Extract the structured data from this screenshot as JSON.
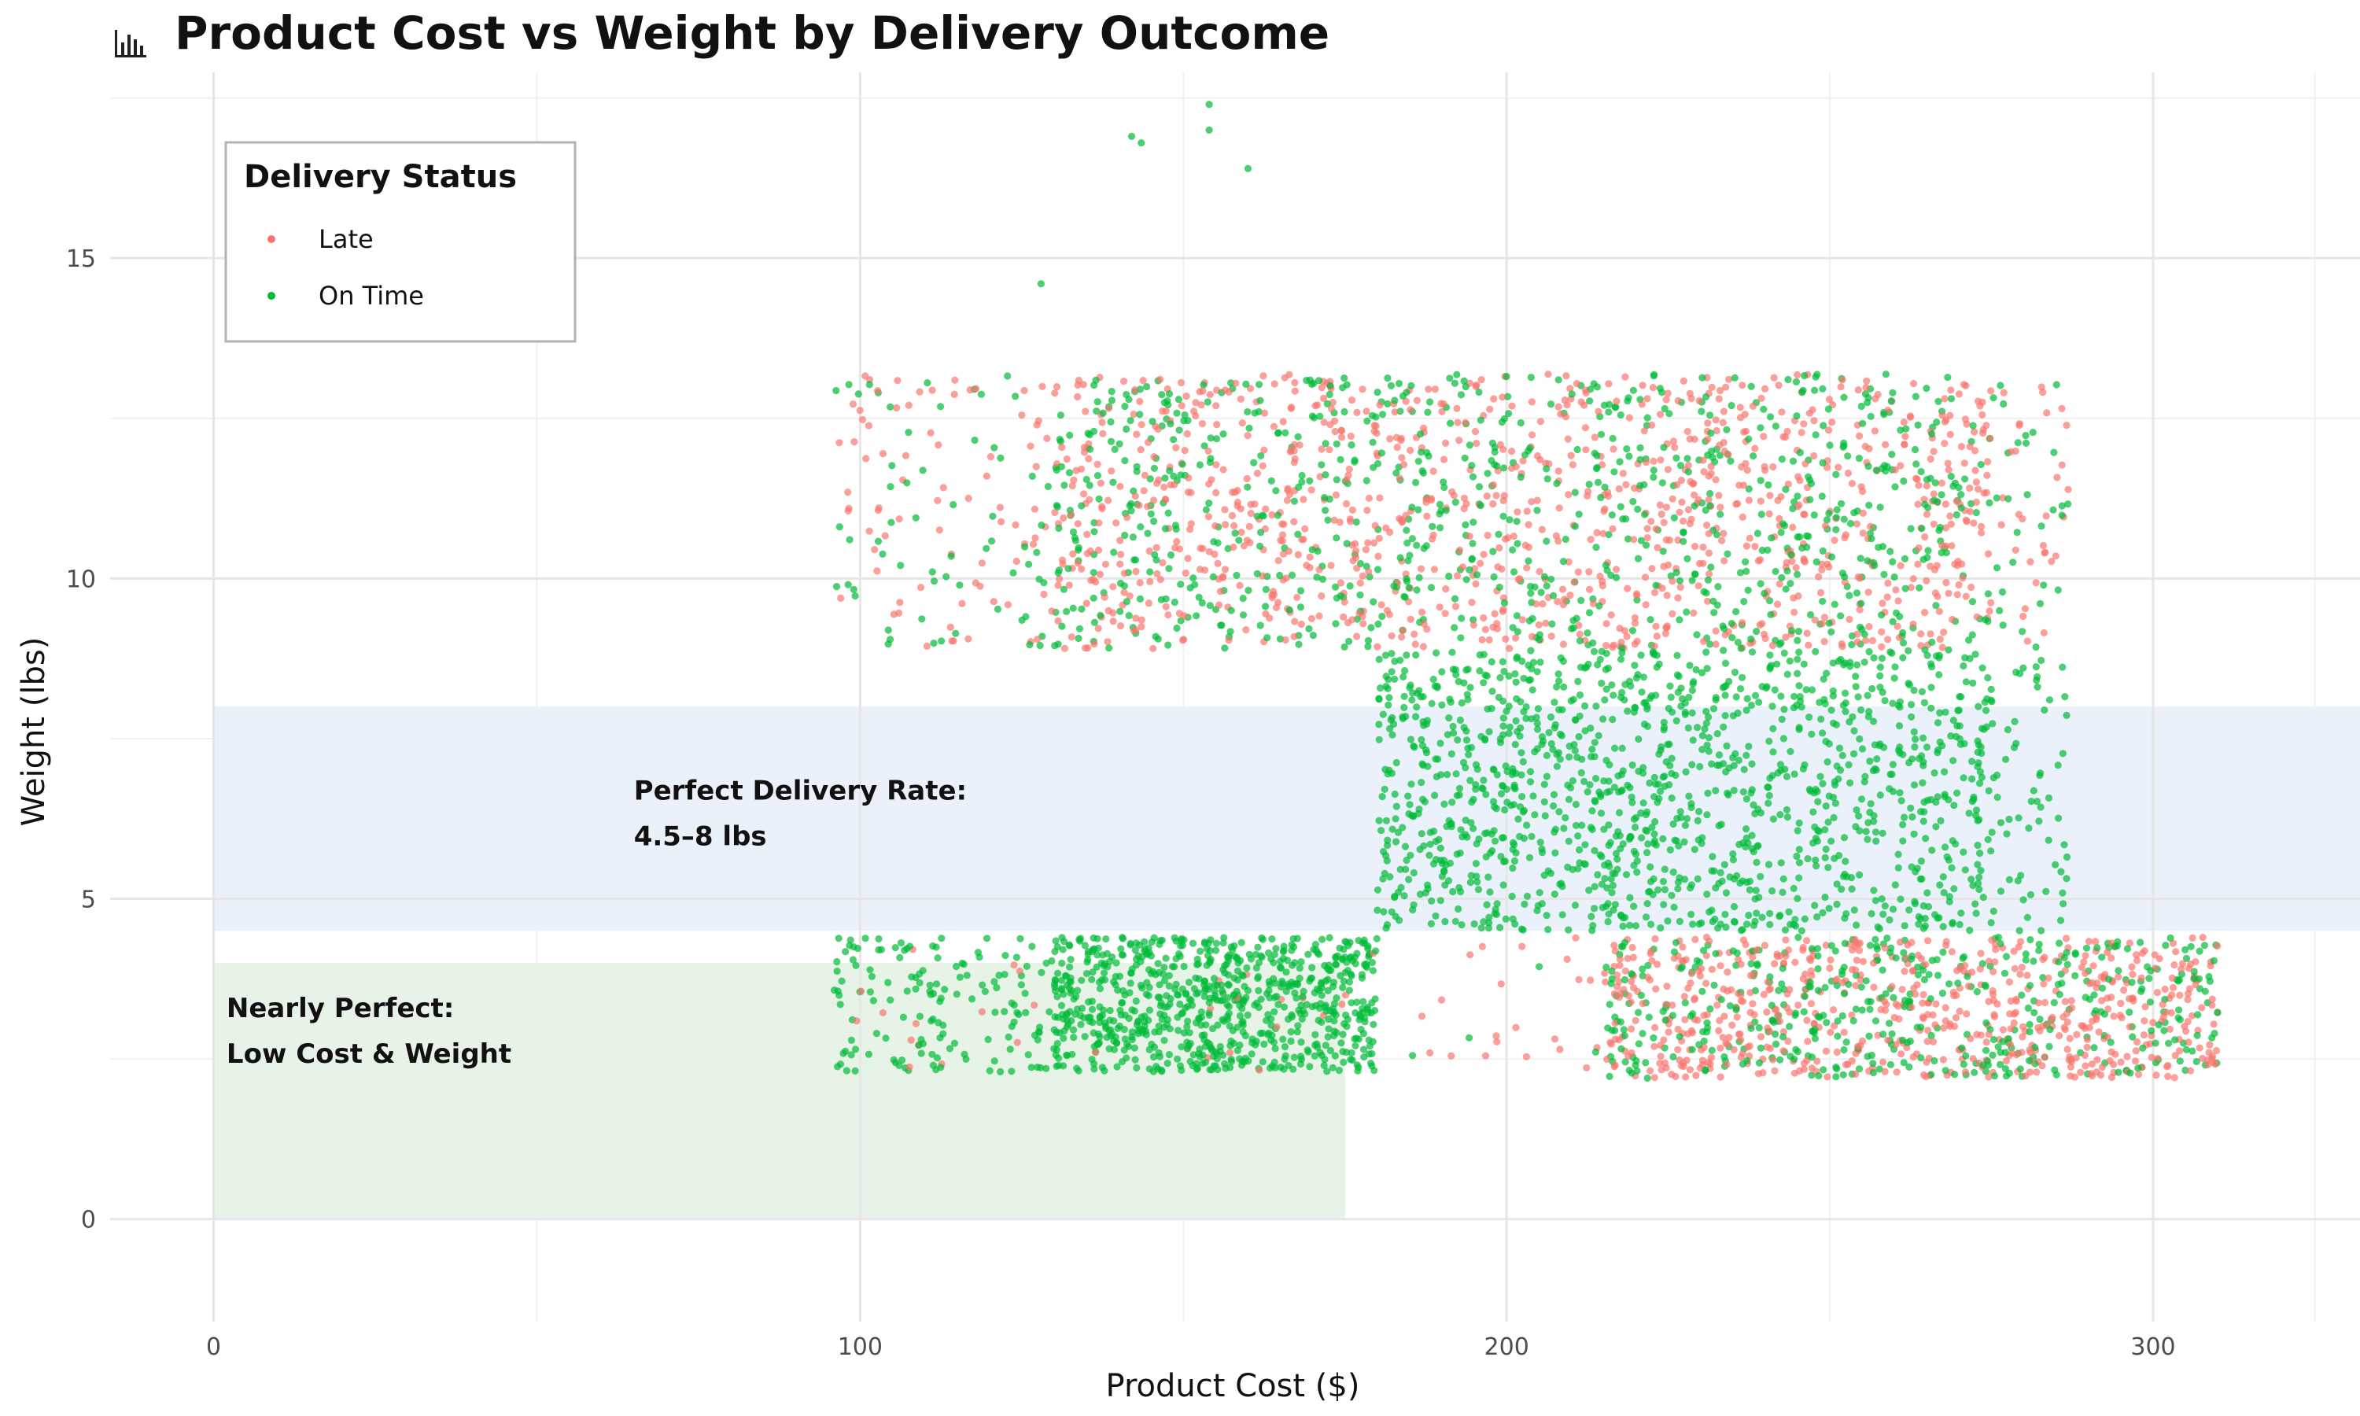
{
  "chart_data": {
    "type": "scatter",
    "title": "Product Cost vs Weight by Delivery Outcome",
    "title_icon": "bar-chart-icon",
    "xlabel": "Product Cost ($)",
    "ylabel": "Weight (lbs)",
    "xlim": [
      -16,
      332
    ],
    "ylim": [
      -1.6,
      17.9
    ],
    "x_ticks": [
      0,
      100,
      200,
      300
    ],
    "y_ticks": [
      0,
      5,
      10,
      15
    ],
    "grid": true,
    "legend": {
      "title": "Delivery Status",
      "placement": "top-left",
      "entries": [
        "Late",
        "On Time"
      ]
    },
    "colors": {
      "Late": "#F8766D",
      "On Time": "#00BA38"
    },
    "regions": [
      {
        "label_lines": [
          "Perfect Delivery Rate:",
          "4.5–8 lbs"
        ],
        "x": [
          0,
          332
        ],
        "y": [
          4.5,
          8
        ],
        "color": "#EAF1FA",
        "label_at": [
          65,
          6.55
        ]
      },
      {
        "label_lines": [
          "Nearly Perfect:",
          "Low Cost & Weight"
        ],
        "x": [
          0,
          175
        ],
        "y": [
          0,
          4
        ],
        "color": "#E8F3E8",
        "label_at": [
          2,
          3.15
        ]
      }
    ],
    "clusters": [
      {
        "x": [
          130,
          275
        ],
        "y": [
          8.9,
          13.2
        ],
        "share_on_time": 0.45,
        "count": 1900
      },
      {
        "x": [
          96,
          130
        ],
        "y": [
          8.9,
          13.2
        ],
        "share_on_time": 0.4,
        "count": 140
      },
      {
        "x": [
          275,
          287
        ],
        "y": [
          8.9,
          13.2
        ],
        "share_on_time": 0.45,
        "count": 60
      },
      {
        "x": [
          180,
          275
        ],
        "y": [
          4.5,
          8.9
        ],
        "share_on_time": 1.0,
        "count": 1300
      },
      {
        "x": [
          275,
          287
        ],
        "y": [
          4.5,
          8.9
        ],
        "share_on_time": 1.0,
        "count": 60
      },
      {
        "x": [
          130,
          180
        ],
        "y": [
          2.3,
          4.4
        ],
        "share_on_time": 0.97,
        "count": 800
      },
      {
        "x": [
          96,
          130
        ],
        "y": [
          2.3,
          4.4
        ],
        "share_on_time": 0.9,
        "count": 160
      },
      {
        "x": [
          215,
          310
        ],
        "y": [
          2.2,
          4.4
        ],
        "share_on_time": 0.4,
        "count": 1100
      },
      {
        "x": [
          185,
          215
        ],
        "y": [
          2.3,
          4.4
        ],
        "share_on_time": 0.35,
        "count": 25
      }
    ],
    "series": [
      {
        "name": "Late",
        "x": [],
        "y": []
      },
      {
        "name": "On Time",
        "x": [
          128,
          142,
          143.5,
          154,
          154,
          160
        ],
        "y": [
          14.6,
          16.9,
          16.8,
          17.4,
          17.0,
          16.4
        ]
      }
    ]
  }
}
